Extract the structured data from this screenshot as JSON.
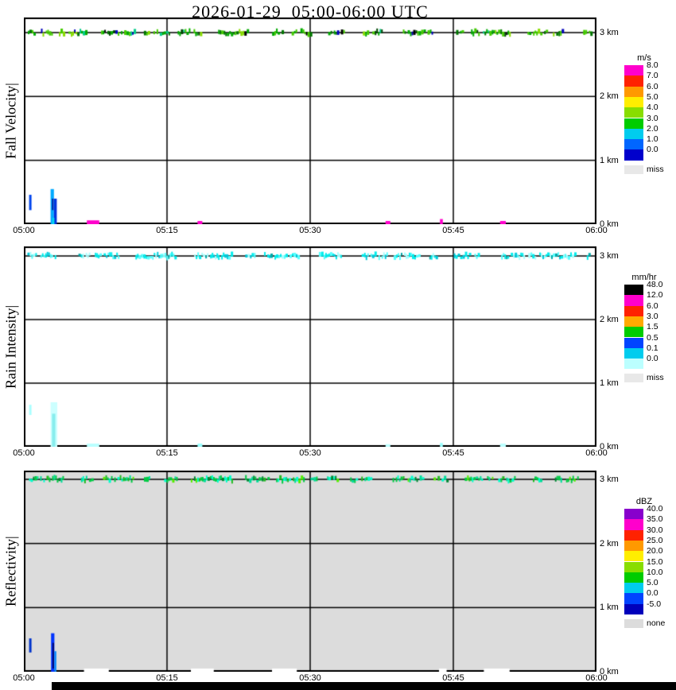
{
  "title": "2026-01-29  05:00-06:00 UTC",
  "chart_data": {
    "type": "heatmap",
    "title": "2026-01-29  05:00-06:00 UTC",
    "x_ticks": [
      "05:00",
      "05:15",
      "05:30",
      "05:45",
      "06:00"
    ],
    "x_range_minutes": [
      0,
      60
    ],
    "y_range_km": [
      0,
      3.25
    ],
    "grid": "on",
    "height_labels": [
      {
        "km": 3,
        "label": "3 km"
      },
      {
        "km": 2,
        "label": "2 km"
      },
      {
        "km": 1,
        "label": "1 km"
      },
      {
        "km": 0,
        "label": "0 km"
      }
    ],
    "panels": [
      {
        "id": "fall-velocity",
        "ylabel": "Fall Velocity|",
        "background": "#ffffff",
        "colorbar": {
          "unit": "m/s",
          "cells": [
            {
              "value": "8.0",
              "color": "#ff00cc"
            },
            {
              "value": "7.0",
              "color": "#ff2200"
            },
            {
              "value": "6.0",
              "color": "#ff9900"
            },
            {
              "value": "5.0",
              "color": "#ffee00"
            },
            {
              "value": "4.0",
              "color": "#88dd00"
            },
            {
              "value": "3.0",
              "color": "#00cc00"
            },
            {
              "value": "2.0",
              "color": "#00ccee"
            },
            {
              "value": "1.0",
              "color": "#0066ff"
            },
            {
              "value": "0.0",
              "color": "#0000cc"
            }
          ],
          "missing": {
            "label": "miss",
            "color": "#e8e8e8"
          }
        },
        "band_3km": {
          "height_km": 3,
          "seed": 7,
          "palette": [
            {
              "color": "#00aa00",
              "w": 6
            },
            {
              "color": "#44cc00",
              "w": 5
            },
            {
              "color": "#88dd00",
              "w": 2
            },
            {
              "color": "#007700",
              "w": 3
            },
            {
              "color": "#004400",
              "w": 1.5
            },
            {
              "color": "#000000",
              "w": 1
            },
            {
              "color": "#0000bb",
              "w": 0.8
            },
            {
              "color": "#00cc88",
              "w": 1
            }
          ]
        },
        "events": [
          {
            "t0": 0.55,
            "t1": 0.8,
            "km0": 0.22,
            "km1": 0.46,
            "color": "#0044ee"
          },
          {
            "t0": 2.8,
            "t1": 3.15,
            "km0": 0.0,
            "km1": 0.55,
            "color": "#00aaff"
          },
          {
            "t0": 3.15,
            "t1": 3.45,
            "km0": 0.0,
            "km1": 0.4,
            "color": "#0033dd"
          },
          {
            "t0": 2.95,
            "t1": 3.1,
            "km0": 0.22,
            "km1": 0.4,
            "color": "#001199"
          },
          {
            "t0": 3.0,
            "t1": 3.2,
            "km0": 0.0,
            "km1": 0.1,
            "color": "#00ddee"
          },
          {
            "t0": 6.6,
            "t1": 7.9,
            "km0": 0.0,
            "km1": 0.06,
            "color": "#ff00cc"
          },
          {
            "t0": 18.2,
            "t1": 18.7,
            "km0": 0.0,
            "km1": 0.05,
            "color": "#ff00cc"
          },
          {
            "t0": 37.9,
            "t1": 38.4,
            "km0": 0.0,
            "km1": 0.05,
            "color": "#ff00cc"
          },
          {
            "t0": 43.6,
            "t1": 43.9,
            "km0": 0.0,
            "km1": 0.08,
            "color": "#ff00cc"
          },
          {
            "t0": 49.9,
            "t1": 50.5,
            "km0": 0.0,
            "km1": 0.05,
            "color": "#ff00cc"
          }
        ]
      },
      {
        "id": "rain-intensity",
        "ylabel": "Rain Intensity|",
        "background": "#ffffff",
        "colorbar": {
          "unit": "mm/hr",
          "cells": [
            {
              "value": "48.0",
              "color": "#000000"
            },
            {
              "value": "12.0",
              "color": "#ff00cc"
            },
            {
              "value": "6.0",
              "color": "#ff2200"
            },
            {
              "value": "3.0",
              "color": "#ffaa00"
            },
            {
              "value": "1.5",
              "color": "#00cc00"
            },
            {
              "value": "0.5",
              "color": "#0044ff"
            },
            {
              "value": "0.1",
              "color": "#00ccee"
            },
            {
              "value": "0.0",
              "color": "#bbffff"
            }
          ],
          "missing": {
            "label": "miss",
            "color": "#e8e8e8"
          }
        },
        "band_3km": {
          "height_km": 3,
          "seed": 12,
          "palette": [
            {
              "color": "#00eeee",
              "w": 6
            },
            {
              "color": "#55ffff",
              "w": 4
            },
            {
              "color": "#00ccdd",
              "w": 2
            },
            {
              "color": "#aaffff",
              "w": 2
            },
            {
              "color": "#00aaaa",
              "w": 1
            }
          ]
        },
        "events": [
          {
            "t0": 0.55,
            "t1": 0.8,
            "km0": 0.5,
            "km1": 0.66,
            "color": "#aaffff"
          },
          {
            "t0": 2.8,
            "t1": 3.5,
            "km0": 0.0,
            "km1": 0.7,
            "color": "#ccffff"
          },
          {
            "t0": 2.95,
            "t1": 3.3,
            "km0": 0.0,
            "km1": 0.52,
            "color": "#88eeee"
          },
          {
            "t0": 6.6,
            "t1": 7.9,
            "km0": 0.0,
            "km1": 0.05,
            "color": "#bbffff"
          },
          {
            "t0": 18.2,
            "t1": 18.7,
            "km0": 0.0,
            "km1": 0.05,
            "color": "#99ffff"
          },
          {
            "t0": 37.9,
            "t1": 38.4,
            "km0": 0.0,
            "km1": 0.04,
            "color": "#bbffff"
          },
          {
            "t0": 43.6,
            "t1": 43.9,
            "km0": 0.0,
            "km1": 0.06,
            "color": "#99ffff"
          },
          {
            "t0": 49.9,
            "t1": 50.5,
            "km0": 0.0,
            "km1": 0.05,
            "color": "#bbffff"
          }
        ]
      },
      {
        "id": "reflectivity",
        "ylabel": "Reflectivity|",
        "background": "#dcdcdc",
        "colorbar": {
          "unit": "dBZ",
          "cells": [
            {
              "value": "40.0",
              "color": "#8800cc"
            },
            {
              "value": "35.0",
              "color": "#ff00cc"
            },
            {
              "value": "30.0",
              "color": "#ff2200"
            },
            {
              "value": "25.0",
              "color": "#ff9900"
            },
            {
              "value": "20.0",
              "color": "#ffee00"
            },
            {
              "value": "15.0",
              "color": "#88dd00"
            },
            {
              "value": "10.0",
              "color": "#00cc00"
            },
            {
              "value": "5.0",
              "color": "#00ccee"
            },
            {
              "value": "0.0",
              "color": "#0044ff"
            },
            {
              "value": "-5.0",
              "color": "#0000bb"
            }
          ],
          "missing": {
            "label": "none",
            "color": "#dcdcdc"
          }
        },
        "band_3km": {
          "height_km": 3,
          "seed": 5,
          "palette": [
            {
              "color": "#00cc44",
              "w": 5
            },
            {
              "color": "#00dd99",
              "w": 3
            },
            {
              "color": "#22bb22",
              "w": 2
            },
            {
              "color": "#00ffcc",
              "w": 2
            },
            {
              "color": "#008833",
              "w": 1.5
            },
            {
              "color": "#55ee00",
              "w": 1
            }
          ]
        },
        "events": [
          {
            "t0": 0.55,
            "t1": 0.8,
            "km0": 0.3,
            "km1": 0.52,
            "color": "#0033cc"
          },
          {
            "t0": 2.85,
            "t1": 3.2,
            "km0": 0.0,
            "km1": 0.6,
            "color": "#0033ff"
          },
          {
            "t0": 3.2,
            "t1": 3.4,
            "km0": 0.0,
            "km1": 0.32,
            "color": "#0088ff"
          },
          {
            "t0": 3.0,
            "t1": 3.15,
            "km0": 0.05,
            "km1": 0.45,
            "color": "#000066"
          },
          {
            "t0": 6.3,
            "t1": 8.9,
            "km0": 0.0,
            "km1": 0.05,
            "color": "#ffffff"
          },
          {
            "t0": 17.5,
            "t1": 19.9,
            "km0": 0.0,
            "km1": 0.05,
            "color": "#ffffff"
          },
          {
            "t0": 26.0,
            "t1": 28.6,
            "km0": 0.0,
            "km1": 0.05,
            "color": "#ffffff"
          },
          {
            "t0": 43.5,
            "t1": 44.3,
            "km0": 0.0,
            "km1": 0.05,
            "color": "#ffffff"
          },
          {
            "t0": 48.2,
            "t1": 50.9,
            "km0": 0.0,
            "km1": 0.05,
            "color": "#ffffff"
          }
        ]
      }
    ]
  }
}
